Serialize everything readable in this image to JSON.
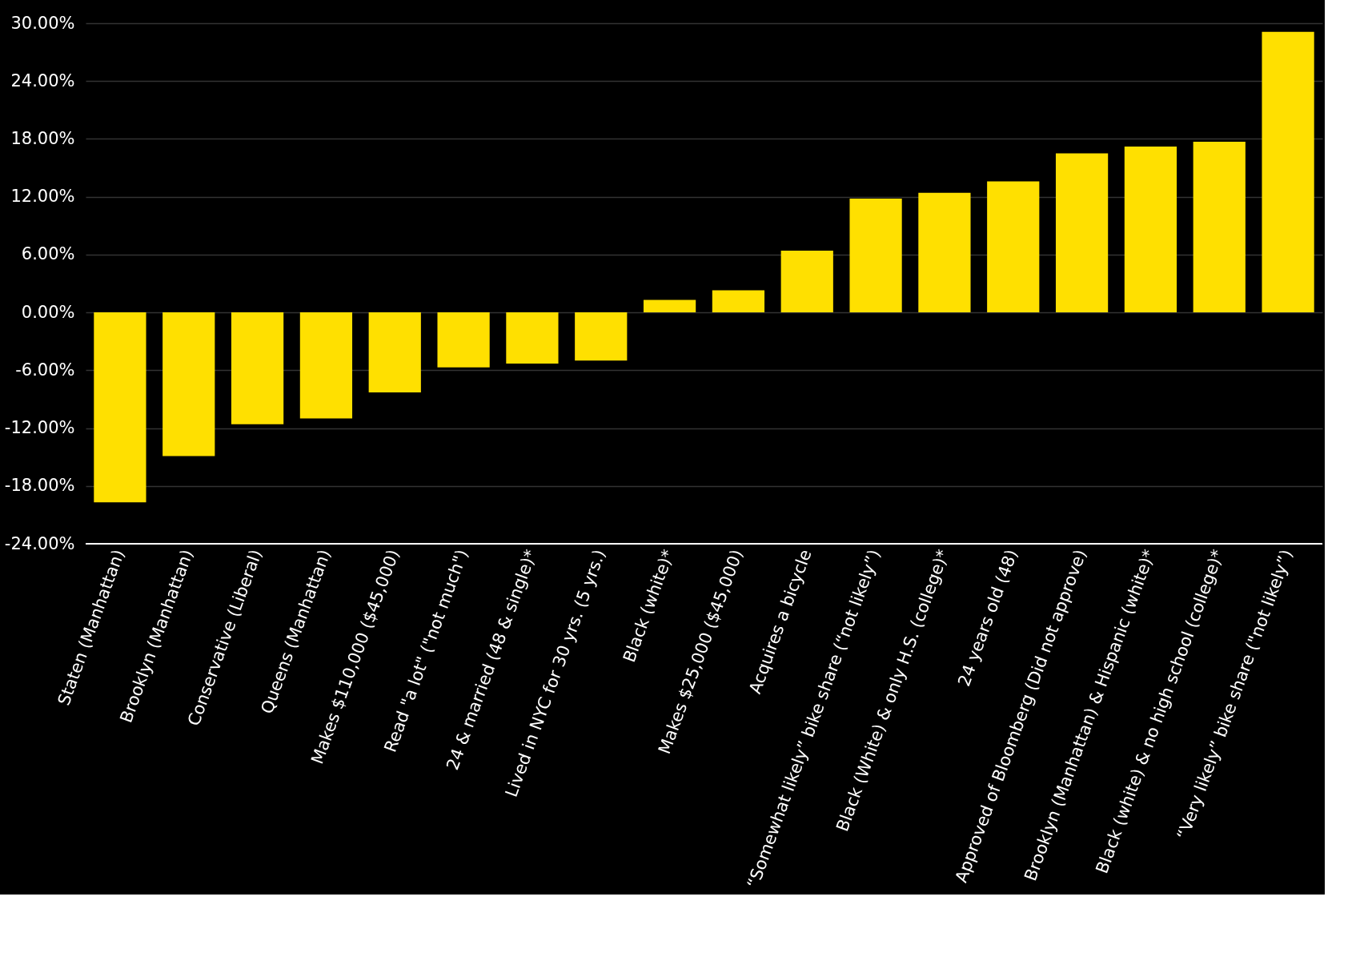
{
  "chart_data": {
    "type": "bar",
    "categories": [
      "Staten (Manhattan)",
      "Brooklyn (Manhattan)",
      "Conservative (Liberal)",
      "Queens (Manhattan)",
      "Makes $110,000 ($45,000)",
      "Read \"a lot\" (\"not much\")",
      "24 & married (48 & single)*",
      "Lived in NYC for 30 yrs. (5 yrs.)",
      "Black (white)*",
      "Makes $25,000 ($45,000)",
      "Acquires a bicycle",
      "“Somewhat likely” bike share (“not likely”)",
      "Black (White) & only H.S. (college)*",
      "24 years old (48)",
      "Approved of Bloomberg (Did not approve)",
      "Brooklyn (Manhattan) & Hispanic (white)*",
      "Black (white) & no high school (college)*",
      "“Very likely” bike share (\"not likely”)"
    ],
    "values": [
      -19.7,
      -14.9,
      -11.6,
      -11.0,
      -8.3,
      -5.7,
      -5.3,
      -5.0,
      1.3,
      2.3,
      6.4,
      11.8,
      12.4,
      13.6,
      16.5,
      17.2,
      17.7,
      29.1
    ],
    "color": "#ffe000",
    "ylim": [
      -24,
      30
    ],
    "yticks": [
      {
        "value": -24,
        "label": "-24.00%"
      },
      {
        "value": -18,
        "label": "-18.00%"
      },
      {
        "value": -12,
        "label": "-12.00%"
      },
      {
        "value": -6,
        "label": "-6.00%"
      },
      {
        "value": 0,
        "label": "0.00%"
      },
      {
        "value": 6,
        "label": "6.00%"
      },
      {
        "value": 12,
        "label": "12.00%"
      },
      {
        "value": 18,
        "label": "18.00%"
      },
      {
        "value": 24,
        "label": "24.00%"
      },
      {
        "value": 30,
        "label": "30.00%"
      }
    ],
    "grid": "y"
  }
}
